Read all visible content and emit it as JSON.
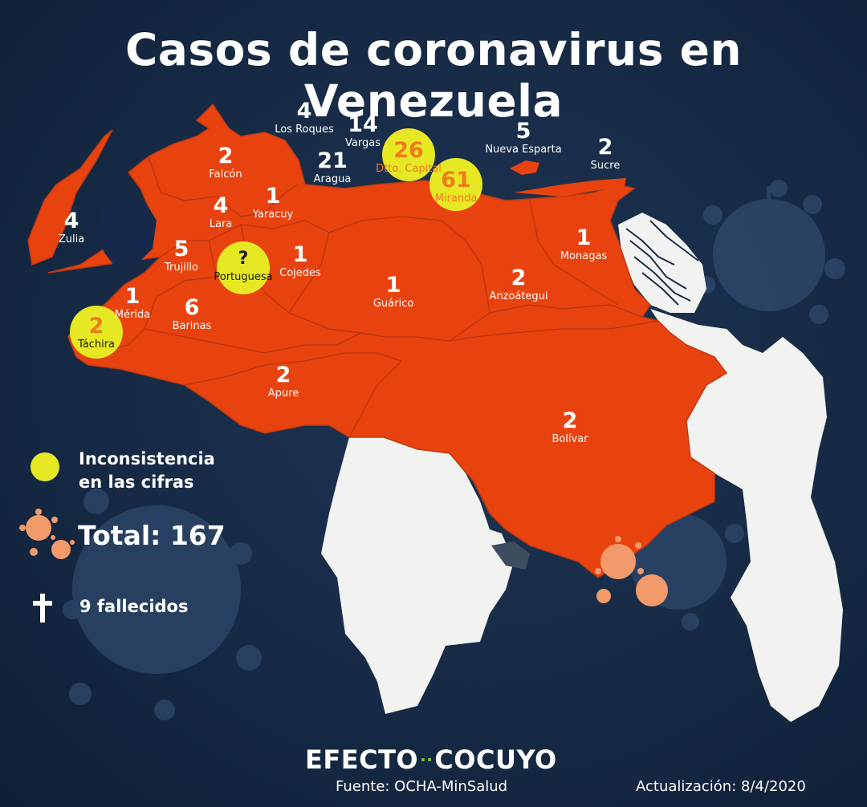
{
  "title": "Casos de coronavirus en Venezuela",
  "regions": [
    {
      "name": "Los Roques",
      "cases": "4"
    },
    {
      "name": "Vargas",
      "cases": "14"
    },
    {
      "name": "Aragua",
      "cases": "21"
    },
    {
      "name": "Dtto. Capital",
      "cases": "26"
    },
    {
      "name": "Miranda",
      "cases": "61"
    },
    {
      "name": "Nueva Esparta",
      "cases": "5"
    },
    {
      "name": "Sucre",
      "cases": "2"
    },
    {
      "name": "Falcón",
      "cases": "2"
    },
    {
      "name": "Zulia",
      "cases": "4"
    },
    {
      "name": "Lara",
      "cases": "4"
    },
    {
      "name": "Yaracuy",
      "cases": "1"
    },
    {
      "name": "Trujillo",
      "cases": "5"
    },
    {
      "name": "Portuguesa",
      "cases": "?"
    },
    {
      "name": "Cojedes",
      "cases": "1"
    },
    {
      "name": "Mérida",
      "cases": "1"
    },
    {
      "name": "Táchira",
      "cases": "2"
    },
    {
      "name": "Barinas",
      "cases": "6"
    },
    {
      "name": "Guárico",
      "cases": "1"
    },
    {
      "name": "Anzoátegui",
      "cases": "2"
    },
    {
      "name": "Monagas",
      "cases": "1"
    },
    {
      "name": "Apure",
      "cases": "2"
    },
    {
      "name": "Bolívar",
      "cases": "2"
    }
  ],
  "legend": {
    "inconsistency_line1": "Inconsistencia",
    "inconsistency_line2": "en las cifras",
    "total": "Total: 167",
    "deaths": "9 fallecidos"
  },
  "brand": {
    "left": "EFECTO",
    "dots": "··",
    "right": "COCUYO"
  },
  "source": "Fuente: OCHA-MinSalud",
  "updated": "Actualización: 8/4/2020",
  "colors": {
    "background": "#16294a",
    "state_fill": "#e8420e",
    "highlight": "#e7e824",
    "land_other": "#f2f2f0",
    "virus_orange": "#f29a6a",
    "virus_bg": "#2c4566"
  }
}
